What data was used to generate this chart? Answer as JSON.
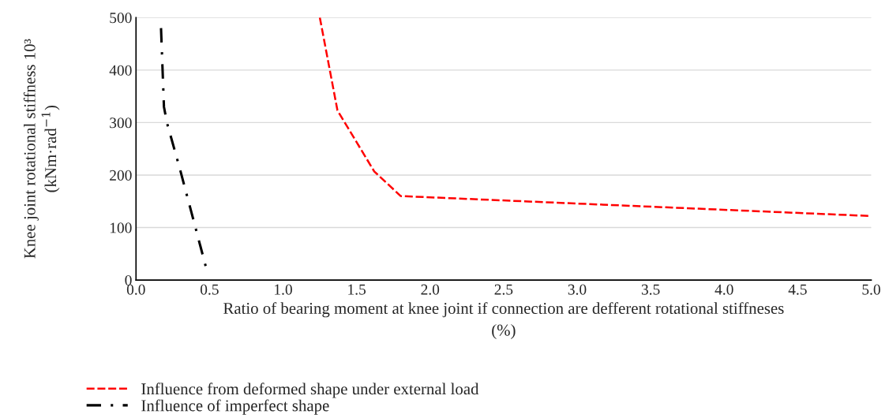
{
  "chart_data": {
    "type": "line",
    "xlabel": "Ratio of bearing moment at knee joint if connection are defferent rotational stiffneses\n(%)",
    "ylabel": "Knee joint rotational stiffness 10³\n(kNm·rad$^{−1}$)",
    "xlim": [
      0,
      5
    ],
    "ylim": [
      0,
      500
    ],
    "xticks": [
      {
        "value": 0,
        "label": "0.0"
      },
      {
        "value": 0.5,
        "label": "0.5"
      },
      {
        "value": 1,
        "label": "1.0"
      },
      {
        "value": 1.5,
        "label": "1.5"
      },
      {
        "value": 2,
        "label": "2.0"
      },
      {
        "value": 2.5,
        "label": "2.5"
      },
      {
        "value": 3,
        "label": "3.0"
      },
      {
        "value": 3.5,
        "label": "3.5"
      },
      {
        "value": 4,
        "label": "4.0"
      },
      {
        "value": 4.5,
        "label": "4.5"
      },
      {
        "value": 5,
        "label": "5.0"
      }
    ],
    "yticks": [
      0,
      100,
      200,
      300,
      400,
      500
    ],
    "grid": "y",
    "legend": "bottom",
    "marker": "none",
    "series": [
      {
        "name": "Influence from deformed shape under external load",
        "color": "#ff0000",
        "line_style": "dashed",
        "x": [
          1.25,
          1.37,
          1.62,
          1.8,
          5.0
        ],
        "values": [
          500,
          323,
          207,
          160,
          122
        ]
      },
      {
        "name": "Influence of imperfect shape",
        "color": "#000000",
        "line_style": "dashdot",
        "x": [
          0.17,
          0.19,
          0.21,
          0.3,
          0.48
        ],
        "values": [
          480,
          330,
          300,
          210,
          20
        ]
      }
    ]
  }
}
